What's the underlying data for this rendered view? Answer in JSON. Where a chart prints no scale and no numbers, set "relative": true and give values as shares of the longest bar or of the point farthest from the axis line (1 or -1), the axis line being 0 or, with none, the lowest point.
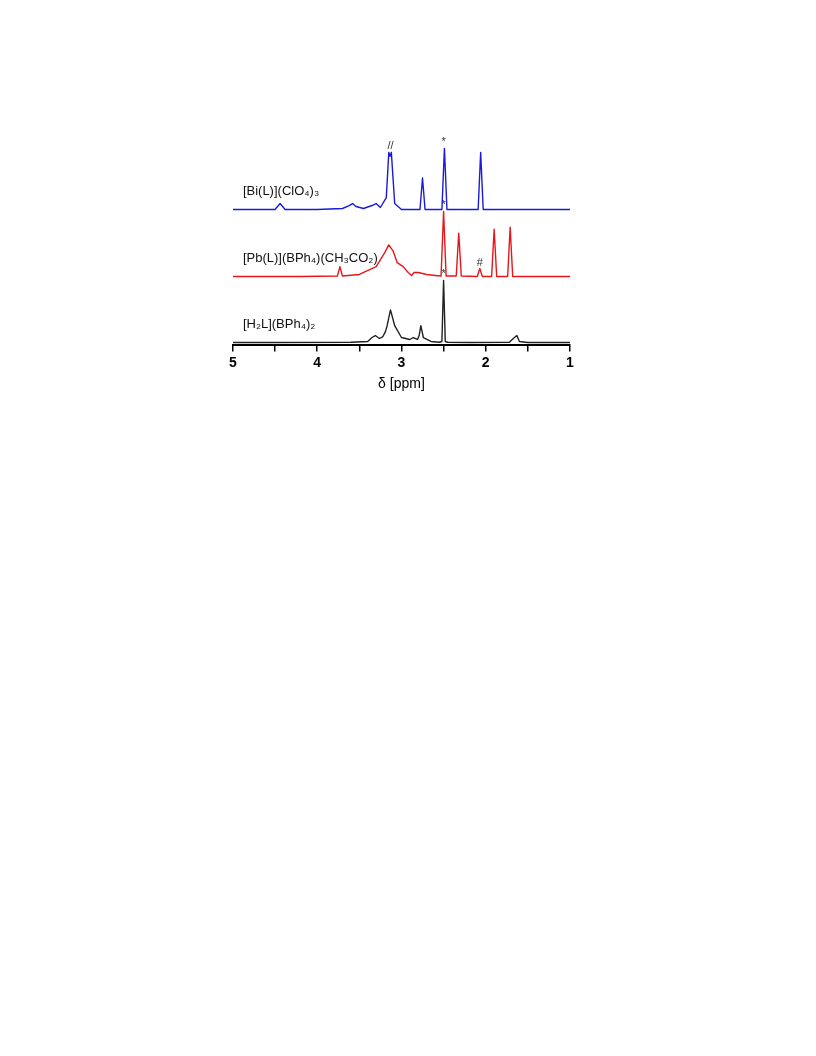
{
  "chart_data": {
    "type": "line",
    "relative": true,
    "xlabel": "δ [ppm]",
    "xlim": [
      5,
      1
    ],
    "xticks": [
      5,
      {
        "value": 4.5,
        "label": null
      },
      4,
      {
        "value": 3.5,
        "label": null
      },
      3,
      {
        "value": 2.5,
        "label": null
      },
      2,
      {
        "value": 1.5,
        "label": null
      },
      1
    ],
    "tick_labels": "x",
    "grid": false,
    "legend": false,
    "marker": "none",
    "line_style": "solid",
    "series": [
      {
        "name": "[Bi(L)](ClO₄)₃",
        "color": "#1a1adc",
        "x": [
          5,
          4.5,
          4.44,
          4.38,
          4.0,
          3.7,
          3.62,
          3.58,
          3.54,
          3.45,
          3.35,
          3.3,
          3.25,
          3.18,
          3.15,
          3.135,
          3.12,
          3.08,
          3.0,
          2.78,
          2.75,
          2.72,
          2.52,
          2.49,
          2.46,
          2.09,
          2.06,
          2.03,
          1.5,
          1
        ],
        "values": [
          0.69,
          0.69,
          0.72,
          0.69,
          0.69,
          0.695,
          0.71,
          0.72,
          0.705,
          0.695,
          0.71,
          0.72,
          0.7,
          0.75,
          0.98,
          0.96,
          0.98,
          0.72,
          0.69,
          0.69,
          0.85,
          0.69,
          0.69,
          1.0,
          0.69,
          0.69,
          0.98,
          0.69,
          0.69,
          0.69
        ]
      },
      {
        "name": "[Pb(L)](BPh₄)(CH₃CO₂)",
        "color": "#e8161b",
        "x": [
          5,
          4.2,
          3.76,
          3.73,
          3.7,
          3.5,
          3.3,
          3.2,
          3.15,
          3.1,
          3.05,
          2.98,
          2.92,
          2.88,
          2.85,
          2.8,
          2.7,
          2.6,
          2.53,
          2.5,
          2.47,
          2.35,
          2.32,
          2.29,
          2.1,
          2.07,
          2.04,
          1.93,
          1.9,
          1.87,
          1.74,
          1.71,
          1.68,
          1.5,
          1
        ],
        "values": [
          0.35,
          0.35,
          0.352,
          0.4,
          0.352,
          0.36,
          0.4,
          0.47,
          0.51,
          0.48,
          0.42,
          0.4,
          0.37,
          0.355,
          0.37,
          0.37,
          0.36,
          0.355,
          0.352,
          0.68,
          0.352,
          0.352,
          0.57,
          0.352,
          0.35,
          0.39,
          0.35,
          0.35,
          0.59,
          0.35,
          0.35,
          0.6,
          0.35,
          0.35,
          0.35
        ]
      },
      {
        "name": "[H₂L](BPh₄)₂",
        "color": "#222222",
        "x": [
          5,
          4.5,
          3.6,
          3.4,
          3.35,
          3.31,
          3.26,
          3.22,
          3.19,
          3.17,
          3.13,
          3.08,
          3.0,
          2.9,
          2.86,
          2.81,
          2.79,
          2.77,
          2.74,
          2.65,
          2.55,
          2.52,
          2.5,
          2.48,
          2.45,
          2.2,
          1.72,
          1.66,
          1.63,
          1.6,
          1.5,
          1
        ],
        "values": [
          0.015,
          0.015,
          0.016,
          0.02,
          0.04,
          0.05,
          0.035,
          0.045,
          0.07,
          0.1,
          0.18,
          0.1,
          0.04,
          0.03,
          0.04,
          0.03,
          0.05,
          0.1,
          0.04,
          0.02,
          0.016,
          0.02,
          0.33,
          0.02,
          0.016,
          0.015,
          0.016,
          0.04,
          0.05,
          0.02,
          0.015,
          0.015
        ]
      }
    ],
    "annotations": [
      {
        "text": "*",
        "x": 2.5,
        "y": 1.0
      },
      {
        "text": "//",
        "x": 3.13,
        "y": 0.98
      },
      {
        "text": "*",
        "x": 2.5,
        "y": 0.68
      },
      {
        "text": "#",
        "x": 2.07,
        "y": 0.39
      },
      {
        "text": "*",
        "x": 2.5,
        "y": 0.33
      }
    ]
  }
}
